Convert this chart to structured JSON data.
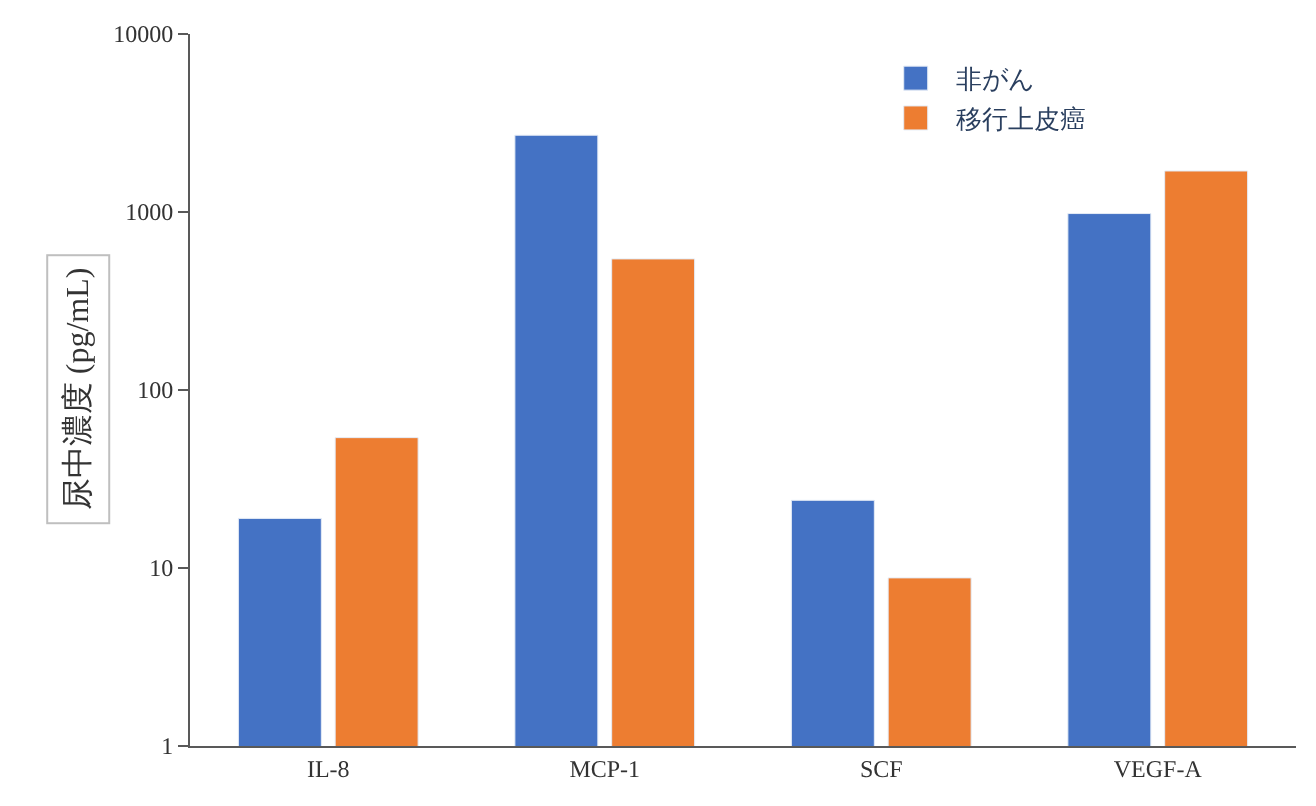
{
  "chart_data": {
    "type": "bar",
    "ylabel": "尿中濃度 (pg/mL)",
    "categories": [
      "IL-8",
      "MCP-1",
      "SCF",
      "VEGF-A"
    ],
    "series": [
      {
        "name": "非がん",
        "color": "#4472c4",
        "values": [
          19,
          2700,
          24,
          980
        ]
      },
      {
        "name": "移行上皮癌",
        "color": "#ed7d31",
        "values": [
          54,
          545,
          8.8,
          1700
        ]
      }
    ],
    "log": "y",
    "ylim": [
      1,
      10000
    ],
    "yticks": [
      1,
      10,
      100,
      1000,
      10000
    ],
    "legend": "top right"
  }
}
